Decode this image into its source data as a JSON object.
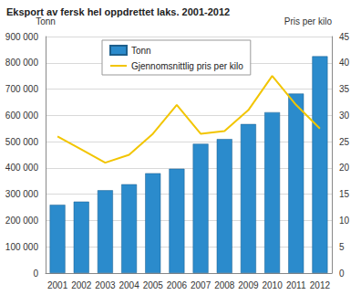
{
  "chart_data": {
    "type": "bar",
    "title": "Eksport av fersk hel oppdrettet laks. 2001-2012",
    "y_label": "Tonn",
    "y2_label": "Pris per kilo",
    "categories": [
      "2001",
      "2002",
      "2003",
      "2004",
      "2005",
      "2006",
      "2007",
      "2008",
      "2009",
      "2010",
      "2011",
      "2012"
    ],
    "series": [
      {
        "name": "Tonn",
        "type": "bar",
        "color": "#2b8bcc",
        "values": [
          260000,
          272000,
          315000,
          338000,
          380000,
          397000,
          492000,
          510000,
          567000,
          612000,
          683000,
          825000
        ]
      },
      {
        "name": "Gjennomsnittlig pris per kilo",
        "type": "line",
        "axis": "y2",
        "color": "#f2c500",
        "values": [
          26,
          23.5,
          21,
          22.5,
          26.5,
          32,
          26.5,
          27,
          31,
          37.5,
          32,
          27.5
        ]
      }
    ],
    "ylim": [
      0,
      900000
    ],
    "yticks": [
      0,
      {
        "value": 100000,
        "label": "100 000"
      },
      {
        "value": 200000,
        "label": "200 000"
      },
      {
        "value": 300000,
        "label": "300 000"
      },
      {
        "value": 400000,
        "label": "400 000"
      },
      {
        "value": 500000,
        "label": "500 000"
      },
      {
        "value": 600000,
        "label": "600 000"
      },
      {
        "value": 700000,
        "label": "700 000"
      },
      {
        "value": 800000,
        "label": "800 000"
      },
      {
        "value": 900000,
        "label": "900 000"
      }
    ],
    "y2lim": [
      0,
      45
    ],
    "y2ticks": [
      0,
      5,
      10,
      15,
      20,
      25,
      30,
      35,
      40,
      45
    ],
    "grid": true,
    "legend": "top"
  }
}
